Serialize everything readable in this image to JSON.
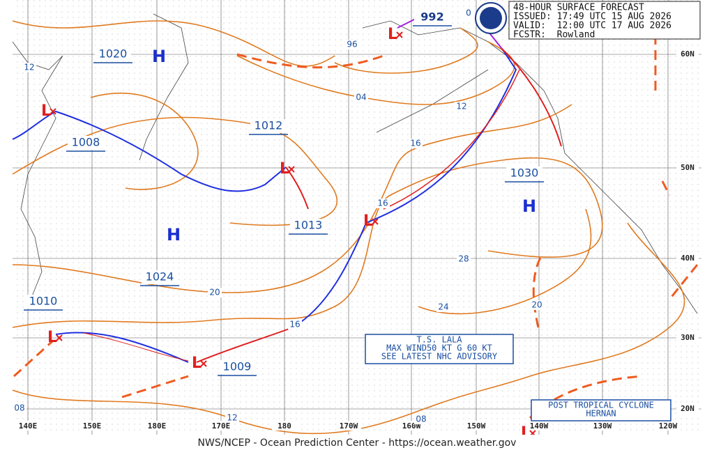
{
  "header": {
    "lines": [
      "48-HOUR SURFACE FORECAST",
      "ISSUED: 17:49 UTC 15 AUG 2026",
      "VALID:  12:00 UTC 17 AUG 2026",
      "FCSTR:  Rowland"
    ]
  },
  "pressure_labels": [
    "1020",
    "1008",
    "1012",
    "1013",
    "1024",
    "1010",
    "1009",
    "1030",
    "992"
  ],
  "highs": [
    "H",
    "H",
    "H"
  ],
  "lows": [
    "L",
    "L",
    "L",
    "L",
    "L",
    "L",
    "L"
  ],
  "isobar_labels": [
    "12",
    "96",
    "04",
    "12",
    "16",
    "16",
    "16",
    "20",
    "28",
    "24",
    "20",
    "08",
    "12",
    "08",
    "0"
  ],
  "lon_labels": [
    "140E",
    "150E",
    "180E",
    "170E",
    "180",
    "170W",
    "160W",
    "150W",
    "140W",
    "130W",
    "120W"
  ],
  "lat_labels": [
    "60N",
    "50N",
    "40N",
    "30N",
    "20N"
  ],
  "advisories": [
    [
      "T.S. LALA",
      "MAX WIND50 KT G 60 KT",
      "SEE LATEST NHC ADVISORY"
    ],
    [
      "POST TROPICAL CYCLONE",
      "HERNAN"
    ]
  ],
  "footer": "NWS/NCEP - Ocean Prediction Center - https://ocean.weather.gov"
}
